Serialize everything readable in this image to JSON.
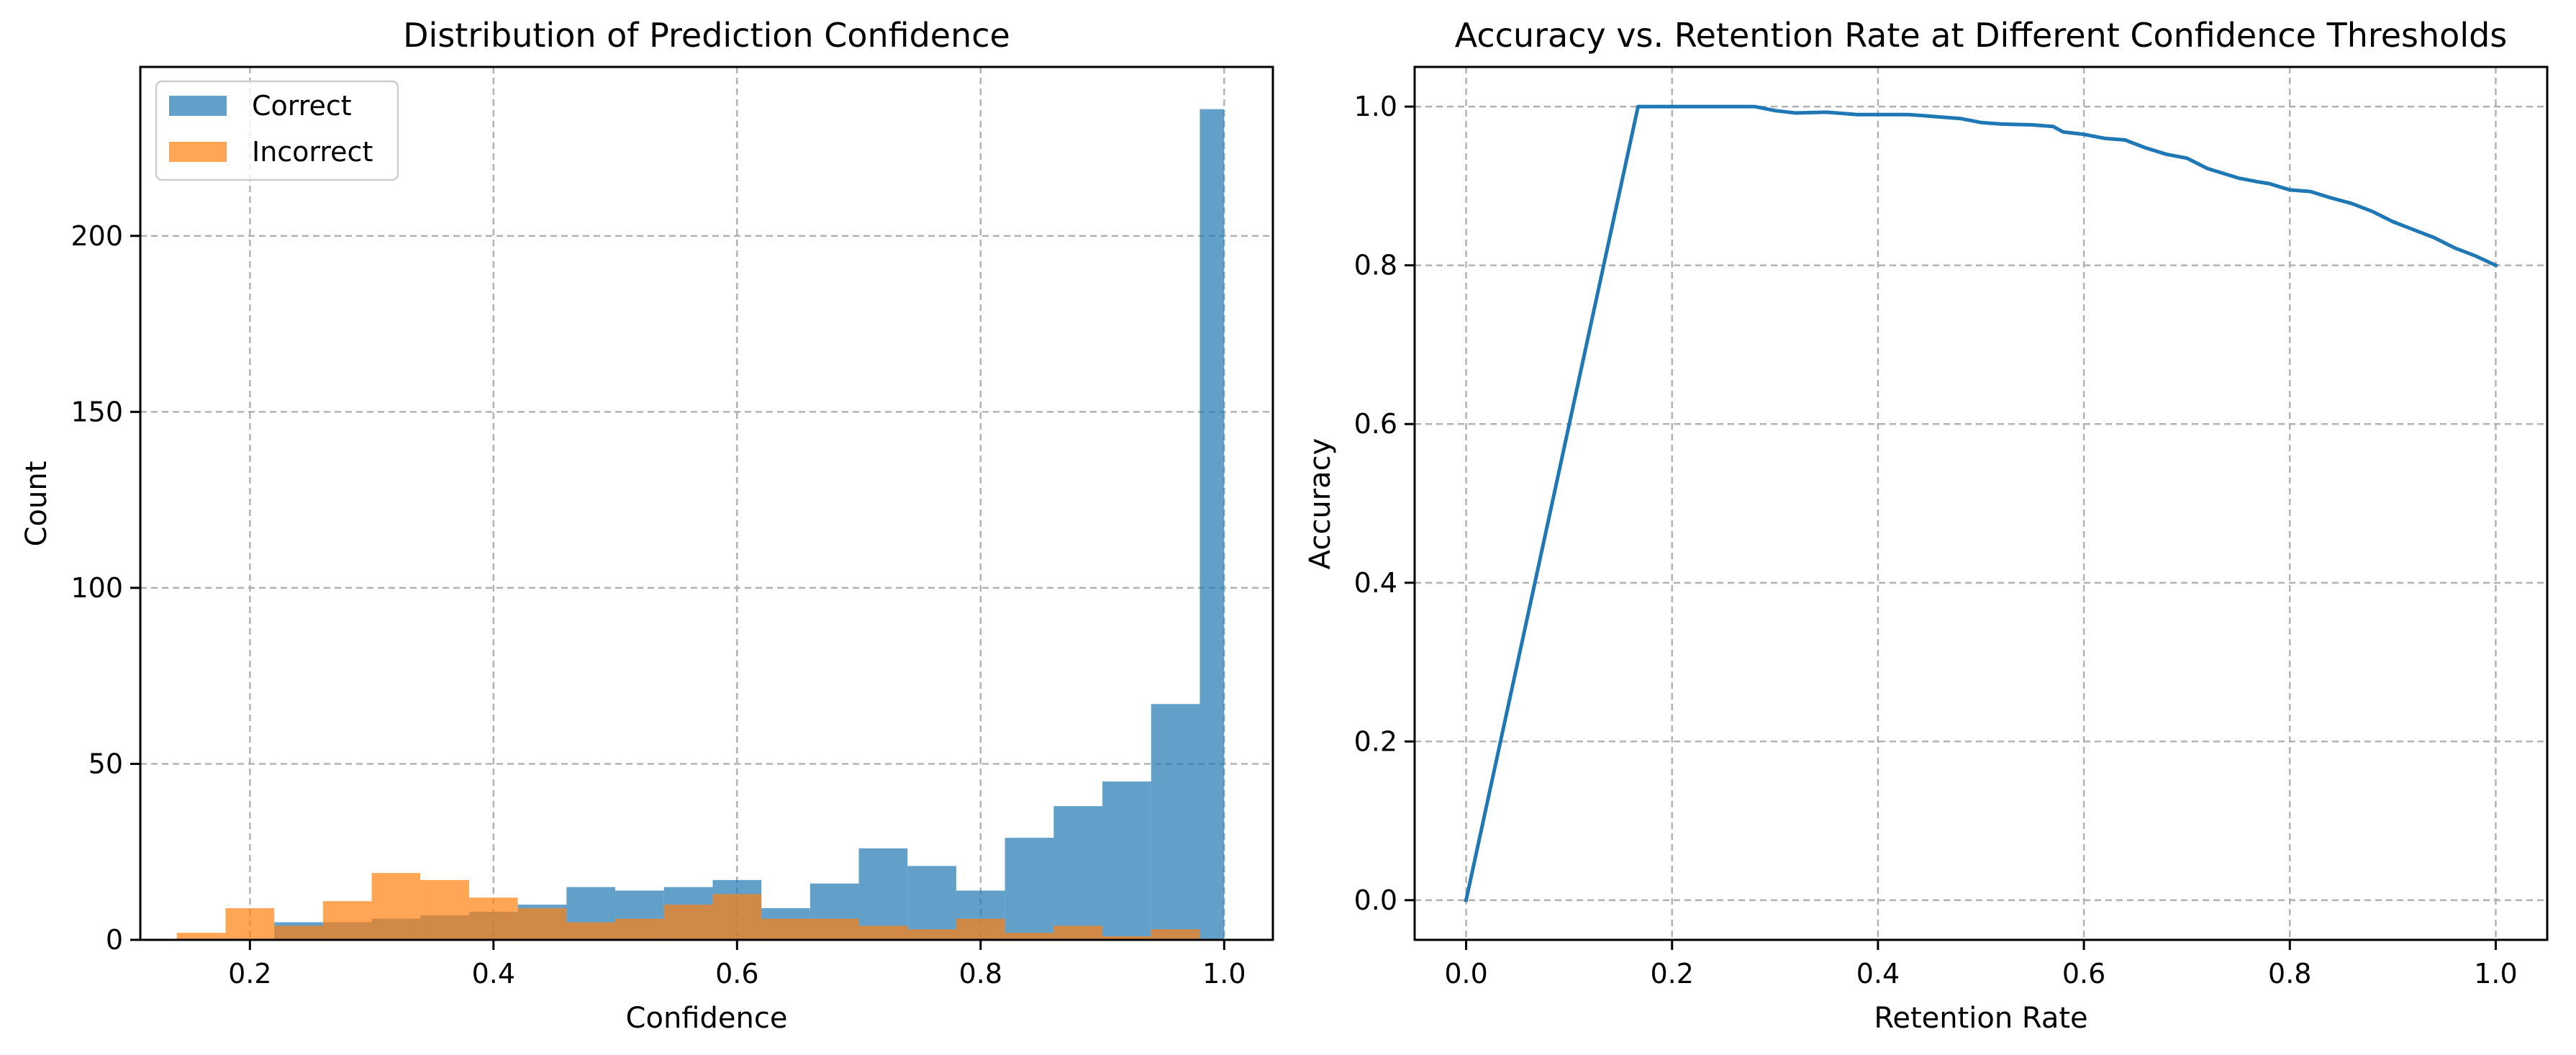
{
  "chart_data": [
    {
      "type": "bar",
      "subtype": "overlaid-histogram",
      "title": "Distribution of Prediction Confidence",
      "xlabel": "Confidence",
      "ylabel": "Count",
      "xlim": [
        0.11,
        1.04
      ],
      "ylim": [
        0,
        248
      ],
      "xticks": [
        "0.2",
        "0.4",
        "0.6",
        "0.8",
        "1.0"
      ],
      "yticks": [
        "0",
        "50",
        "100",
        "150",
        "200"
      ],
      "grid": true,
      "legend": "upper left",
      "series": [
        {
          "name": "Correct",
          "color": "#1f77b4",
          "alpha": 0.7,
          "bin_edges": [
            0.22,
            0.26,
            0.3,
            0.34,
            0.38,
            0.42,
            0.46,
            0.5,
            0.54,
            0.58,
            0.62,
            0.66,
            0.7,
            0.74,
            0.78,
            0.82,
            0.86,
            0.9,
            0.94,
            0.98,
            1.0
          ],
          "values": [
            5,
            5,
            6,
            7,
            8,
            10,
            15,
            14,
            15,
            17,
            9,
            16,
            26,
            21,
            14,
            29,
            38,
            45,
            67,
            236
          ]
        },
        {
          "name": "Incorrect",
          "color": "#ff7f0e",
          "alpha": 0.7,
          "bin_edges": [
            0.14,
            0.18,
            0.22,
            0.26,
            0.3,
            0.34,
            0.38,
            0.42,
            0.46,
            0.5,
            0.54,
            0.58,
            0.62,
            0.66,
            0.7,
            0.74,
            0.78,
            0.82,
            0.86,
            0.9,
            0.94,
            0.98
          ],
          "values": [
            2,
            9,
            4,
            11,
            19,
            17,
            12,
            9,
            5,
            6,
            10,
            13,
            6,
            6,
            4,
            3,
            6,
            2,
            4,
            1,
            3
          ]
        }
      ]
    },
    {
      "type": "line",
      "title": "Accuracy vs. Retention Rate at Different Confidence Thresholds",
      "xlabel": "Retention Rate",
      "ylabel": "Accuracy",
      "xlim": [
        -0.05,
        1.05
      ],
      "ylim": [
        -0.05,
        1.05
      ],
      "xticks": [
        "0.0",
        "0.2",
        "0.4",
        "0.6",
        "0.8",
        "1.0"
      ],
      "yticks": [
        "0.0",
        "0.2",
        "0.4",
        "0.6",
        "0.8",
        "1.0"
      ],
      "grid": true,
      "series": [
        {
          "color": "#1f77b4",
          "x": [
            0.0,
            0.167,
            0.2,
            0.25,
            0.28,
            0.3,
            0.32,
            0.35,
            0.38,
            0.4,
            0.43,
            0.45,
            0.48,
            0.5,
            0.52,
            0.55,
            0.57,
            0.58,
            0.6,
            0.62,
            0.64,
            0.66,
            0.68,
            0.7,
            0.72,
            0.75,
            0.77,
            0.78,
            0.8,
            0.82,
            0.84,
            0.86,
            0.88,
            0.9,
            0.92,
            0.94,
            0.96,
            0.98,
            1.0
          ],
          "y": [
            0.0,
            1.0,
            1.0,
            1.0,
            1.0,
            0.995,
            0.992,
            0.993,
            0.99,
            0.99,
            0.99,
            0.988,
            0.985,
            0.98,
            0.978,
            0.977,
            0.975,
            0.968,
            0.965,
            0.96,
            0.958,
            0.948,
            0.94,
            0.935,
            0.922,
            0.91,
            0.905,
            0.903,
            0.895,
            0.893,
            0.885,
            0.878,
            0.868,
            0.855,
            0.845,
            0.835,
            0.822,
            0.812,
            0.8
          ]
        }
      ]
    }
  ]
}
